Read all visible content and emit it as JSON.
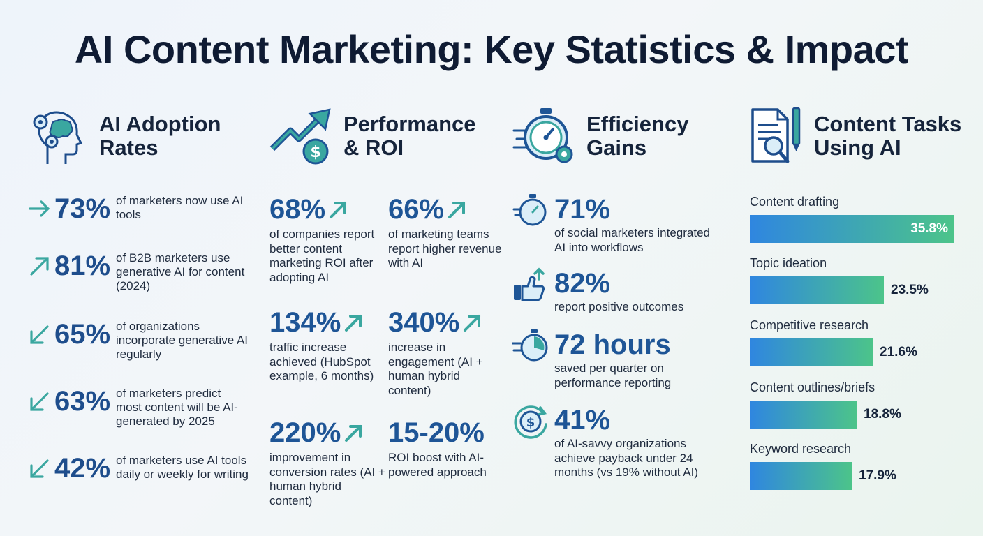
{
  "title": "AI Content Marketing: Key Statistics & Impact",
  "colors": {
    "navy": "#0f1b33",
    "blue": "#1e5596",
    "teal": "#3aa7a0",
    "green": "#4cc48a"
  },
  "adoption": {
    "title_line1": "AI Adoption",
    "title_line2": "Rates",
    "icon": "head-gears-icon",
    "items": [
      {
        "pct": "73%",
        "text": "of marketers now use AI tools",
        "arrow": "right"
      },
      {
        "pct": "81%",
        "text": "of B2B marketers use generative AI for content (2024)",
        "arrow": "up"
      },
      {
        "pct": "65%",
        "text": "of organizations incorporate generative AI regularly",
        "arrow": "down"
      },
      {
        "pct": "63%",
        "text": "of marketers predict most content will be AI-generated by 2025",
        "arrow": "down"
      },
      {
        "pct": "42%",
        "text": "of marketers use AI tools daily or weekly for writing",
        "arrow": "down"
      }
    ]
  },
  "performance": {
    "title_line1": "Performance",
    "title_line2": "& ROI",
    "icon": "growth-arrow-dollar-icon",
    "items": [
      {
        "value": "68%",
        "text": "of companies report better content marketing ROI after adopting AI",
        "arrow": true
      },
      {
        "value": "66%",
        "text": "of marketing teams report higher revenue with AI",
        "arrow": true
      },
      {
        "value": "134%",
        "text": "traffic increase achieved (HubSpot example, 6 months)",
        "arrow": true
      },
      {
        "value": "340%",
        "text": "increase in engagement (AI + human hybrid content)",
        "arrow": true
      },
      {
        "value": "220%",
        "text": "improvement in conversion rates (AI + human hybrid content)",
        "arrow": true
      },
      {
        "value": "15-20%",
        "text": "ROI boost with AI-powered approach",
        "arrow": false
      }
    ]
  },
  "efficiency": {
    "title_line1": "Efficiency",
    "title_line2": "Gains",
    "icon": "stopwatch-gear-icon",
    "items": [
      {
        "value": "71%",
        "text": "of social marketers integrated AI into workflows",
        "icon": "stopwatch-icon"
      },
      {
        "value": "82%",
        "text": "report positive outcomes",
        "icon": "thumbs-up-icon"
      },
      {
        "value": "72 hours",
        "text": "saved per quarter on performance reporting",
        "icon": "fast-clock-icon"
      },
      {
        "value": "41%",
        "text": "of AI-savvy organizations achieve payback under 24 months (vs 19% without AI)",
        "icon": "dollar-cycle-icon"
      }
    ]
  },
  "tasks": {
    "title_line1": "Content Tasks",
    "title_line2": "Using AI",
    "icon": "document-magnifier-icon",
    "items": [
      {
        "label": "Content drafting",
        "value": "35.8%",
        "pct": 35.8
      },
      {
        "label": "Topic ideation",
        "value": "23.5%",
        "pct": 23.5
      },
      {
        "label": "Competitive research",
        "value": "21.6%",
        "pct": 21.6
      },
      {
        "label": "Content outlines/briefs",
        "value": "18.8%",
        "pct": 18.8
      },
      {
        "label": "Keyword research",
        "value": "17.9%",
        "pct": 17.9
      }
    ]
  }
}
